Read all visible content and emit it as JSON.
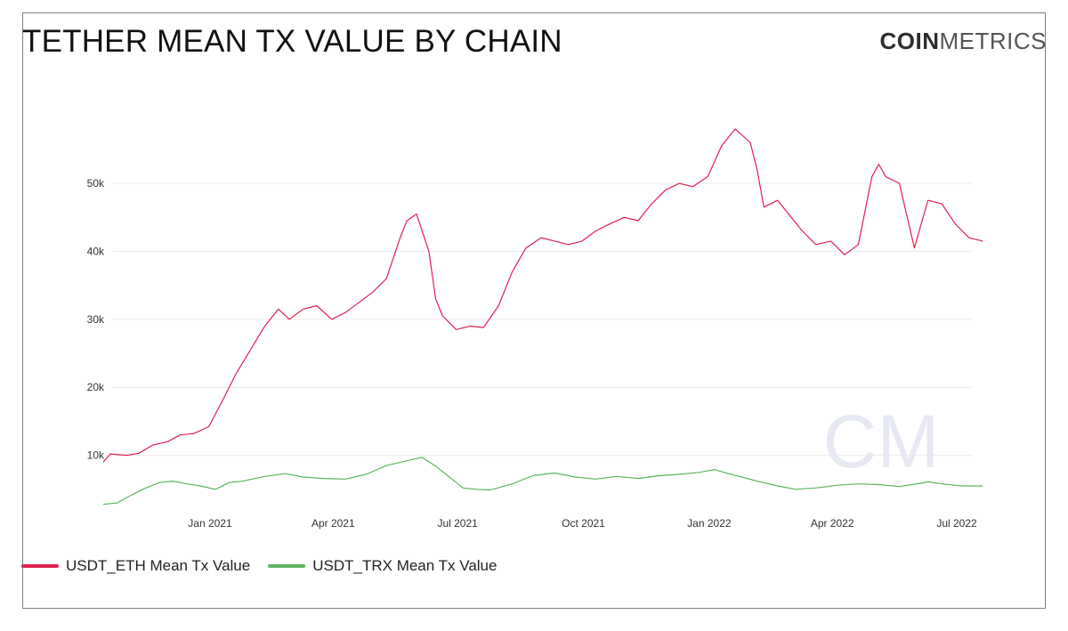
{
  "header": {
    "title": "TETHER MEAN TX VALUE BY CHAIN"
  },
  "brand": {
    "bold": "COIN",
    "light": "METRICS",
    "watermark": "CM"
  },
  "legend": {
    "items": [
      {
        "label": "USDT_ETH Mean Tx Value",
        "color": "#e0204f"
      },
      {
        "label": "USDT_TRX Mean Tx Value",
        "color": "#5bb55e"
      }
    ]
  },
  "chart_data": {
    "type": "line",
    "title": "TETHER MEAN TX VALUE BY CHAIN",
    "xlabel": "",
    "ylabel": "",
    "xlim": [
      "2020-10-15",
      "2022-07-21"
    ],
    "ylim": [
      0,
      60000
    ],
    "yticks": [
      10000,
      20000,
      30000,
      40000,
      50000
    ],
    "ytick_labels": [
      "10k",
      "20k",
      "30k",
      "40k",
      "50k"
    ],
    "xticks": [
      "2021-01-01",
      "2021-04-01",
      "2021-07-01",
      "2021-10-01",
      "2022-01-01",
      "2022-04-01",
      "2022-07-01"
    ],
    "xtick_labels": [
      "Jan 2021",
      "Apr 2021",
      "Jul 2021",
      "Oct 2021",
      "Jan 2022",
      "Apr 2022",
      "Jul 2022"
    ],
    "grid": true,
    "legend_position": "bottom-left",
    "series": [
      {
        "name": "USDT_ETH Mean Tx Value",
        "color": "#e0204f",
        "x": [
          "2020-10-15",
          "2020-10-20",
          "2020-11-01",
          "2020-11-10",
          "2020-11-20",
          "2020-12-01",
          "2020-12-10",
          "2020-12-20",
          "2020-12-31",
          "2021-01-10",
          "2021-01-20",
          "2021-02-01",
          "2021-02-10",
          "2021-02-20",
          "2021-02-28",
          "2021-03-10",
          "2021-03-20",
          "2021-03-31",
          "2021-04-10",
          "2021-04-20",
          "2021-04-30",
          "2021-05-10",
          "2021-05-20",
          "2021-05-25",
          "2021-06-01",
          "2021-06-10",
          "2021-06-15",
          "2021-06-20",
          "2021-06-30",
          "2021-07-10",
          "2021-07-20",
          "2021-07-31",
          "2021-08-10",
          "2021-08-20",
          "2021-08-31",
          "2021-09-10",
          "2021-09-20",
          "2021-09-30",
          "2021-10-10",
          "2021-10-20",
          "2021-10-31",
          "2021-11-10",
          "2021-11-20",
          "2021-11-30",
          "2021-12-10",
          "2021-12-20",
          "2021-12-31",
          "2022-01-10",
          "2022-01-20",
          "2022-01-31",
          "2022-02-05",
          "2022-02-10",
          "2022-02-20",
          "2022-02-28",
          "2022-03-10",
          "2022-03-20",
          "2022-03-31",
          "2022-04-10",
          "2022-04-20",
          "2022-04-30",
          "2022-05-05",
          "2022-05-10",
          "2022-05-20",
          "2022-05-31",
          "2022-06-05",
          "2022-06-10",
          "2022-06-20",
          "2022-06-30",
          "2022-07-10",
          "2022-07-20"
        ],
        "values": [
          9000,
          10200,
          10000,
          10300,
          11500,
          12000,
          13000,
          13200,
          14200,
          18000,
          22000,
          26000,
          29000,
          31500,
          30000,
          31500,
          32000,
          30000,
          31000,
          32500,
          34000,
          36000,
          42000,
          44500,
          45500,
          40000,
          33000,
          30500,
          28500,
          29000,
          28800,
          32000,
          37000,
          40500,
          42000,
          41500,
          41000,
          41500,
          43000,
          44000,
          45000,
          44500,
          47000,
          49000,
          50000,
          49500,
          51000,
          55500,
          58000,
          56000,
          52000,
          46500,
          47500,
          45500,
          43000,
          41000,
          41500,
          39500,
          41000,
          51000,
          52800,
          51000,
          50000,
          40500,
          44000,
          47500,
          47000,
          44000,
          42000,
          41500
        ]
      },
      {
        "name": "USDT_TRX Mean Tx Value",
        "color": "#5bb55e",
        "x": [
          "2020-10-15",
          "2020-10-25",
          "2020-11-05",
          "2020-11-15",
          "2020-11-25",
          "2020-12-05",
          "2020-12-15",
          "2020-12-25",
          "2021-01-05",
          "2021-01-15",
          "2021-01-25",
          "2021-02-10",
          "2021-02-25",
          "2021-03-10",
          "2021-03-25",
          "2021-04-10",
          "2021-04-25",
          "2021-05-10",
          "2021-05-25",
          "2021-06-05",
          "2021-06-15",
          "2021-06-25",
          "2021-07-05",
          "2021-07-15",
          "2021-07-25",
          "2021-08-10",
          "2021-08-25",
          "2021-09-10",
          "2021-09-25",
          "2021-10-10",
          "2021-10-25",
          "2021-11-10",
          "2021-11-25",
          "2021-12-10",
          "2021-12-25",
          "2022-01-05",
          "2022-01-15",
          "2022-01-25",
          "2022-02-05",
          "2022-02-20",
          "2022-03-05",
          "2022-03-20",
          "2022-04-05",
          "2022-04-20",
          "2022-05-05",
          "2022-05-20",
          "2022-06-05",
          "2022-06-10",
          "2022-06-20",
          "2022-07-05",
          "2022-07-20"
        ],
        "values": [
          2800,
          3000,
          4200,
          5200,
          6000,
          6200,
          5800,
          5500,
          5000,
          6000,
          6200,
          6900,
          7300,
          6800,
          6600,
          6500,
          7200,
          8500,
          9200,
          9700,
          8400,
          6800,
          5200,
          5000,
          4900,
          5800,
          7000,
          7400,
          6800,
          6500,
          6900,
          6600,
          7000,
          7200,
          7500,
          7900,
          7300,
          6800,
          6200,
          5500,
          5000,
          5200,
          5600,
          5800,
          5700,
          5400,
          5900,
          6100,
          5800,
          5500,
          5500
        ]
      }
    ]
  }
}
